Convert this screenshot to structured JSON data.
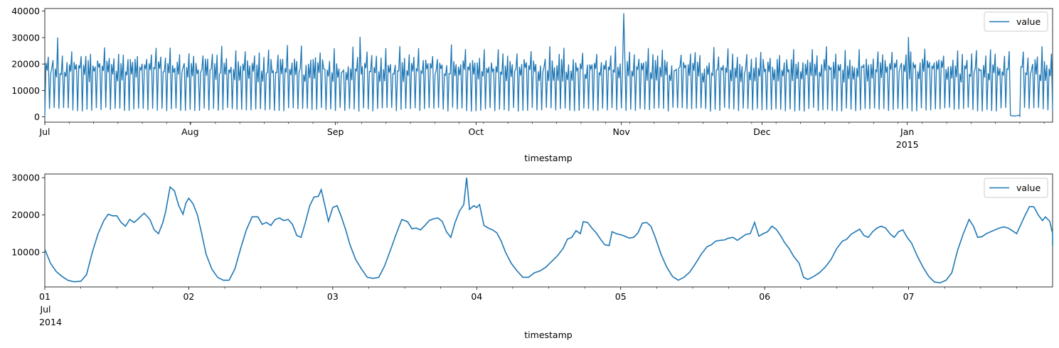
{
  "colors": {
    "series": "#1f77b4",
    "axis": "#000000",
    "legend_border": "#cccccc"
  },
  "chart_data": [
    {
      "type": "line",
      "xlabel": "timestamp",
      "x_ticks": [
        {
          "label": "Jul",
          "day": 0
        },
        {
          "label": "Aug",
          "day": 31
        },
        {
          "label": "Sep",
          "day": 62
        },
        {
          "label": "Oct",
          "day": 92
        },
        {
          "label": "Nov",
          "day": 123
        },
        {
          "label": "Dec",
          "day": 153
        },
        {
          "label": "Jan",
          "day": 184
        }
      ],
      "x_year_label": "2015",
      "x_range_days": [
        0,
        215
      ],
      "ylim": [
        -2000,
        41000
      ],
      "y_ticks": [
        0,
        10000,
        20000,
        30000,
        40000
      ],
      "legend": {
        "entries": [
          "value"
        ],
        "placement": "top-right"
      },
      "series": [
        {
          "name": "value",
          "start": "2014-07-01",
          "step_hours": 6,
          "pattern": "daily-weekly",
          "peak_max": 39197,
          "min": 0
        }
      ],
      "spikes": [
        {
          "day": 123.5,
          "value": 39197
        },
        {
          "day": 67.3,
          "value": 30300
        },
        {
          "day": 2.8,
          "value": 30000
        },
        {
          "day": 184.3,
          "value": 30200
        }
      ],
      "outage": {
        "start_day": 206,
        "end_day": 208
      }
    },
    {
      "type": "line",
      "xlabel": "timestamp",
      "x_ticks": [
        {
          "label": "01",
          "day": 0
        },
        {
          "label": "02",
          "day": 1
        },
        {
          "label": "03",
          "day": 2
        },
        {
          "label": "04",
          "day": 3
        },
        {
          "label": "05",
          "day": 4
        },
        {
          "label": "06",
          "day": 5
        },
        {
          "label": "07",
          "day": 6
        }
      ],
      "x_sub_labels": [
        "Jul",
        "2014"
      ],
      "x_range_days": [
        0,
        7
      ],
      "ylim": [
        700,
        31000
      ],
      "y_ticks": [
        10000,
        20000,
        30000
      ],
      "legend": {
        "entries": [
          "value"
        ],
        "placement": "top-right"
      },
      "series": [
        {
          "name": "value",
          "points": [
            [
              0.0,
              10800
            ],
            [
              0.04,
              7000
            ],
            [
              0.08,
              4800
            ],
            [
              0.12,
              3500
            ],
            [
              0.16,
              2500
            ],
            [
              0.2,
              2100
            ],
            [
              0.25,
              2200
            ],
            [
              0.29,
              4000
            ],
            [
              0.33,
              10000
            ],
            [
              0.37,
              15000
            ],
            [
              0.41,
              18500
            ],
            [
              0.44,
              20200
            ],
            [
              0.47,
              19800
            ],
            [
              0.5,
              19800
            ],
            [
              0.53,
              18000
            ],
            [
              0.56,
              17000
            ],
            [
              0.59,
              18800
            ],
            [
              0.62,
              18000
            ],
            [
              0.65,
              19000
            ],
            [
              0.69,
              20500
            ],
            [
              0.73,
              18800
            ],
            [
              0.76,
              16000
            ],
            [
              0.79,
              15000
            ],
            [
              0.82,
              18000
            ],
            [
              0.84,
              21000
            ],
            [
              0.87,
              27500
            ],
            [
              0.9,
              26500
            ],
            [
              0.93,
              22500
            ],
            [
              0.96,
              20200
            ],
            [
              0.98,
              23200
            ],
            [
              1.0,
              24500
            ],
            [
              1.03,
              23000
            ],
            [
              1.06,
              20000
            ],
            [
              1.09,
              15000
            ],
            [
              1.12,
              9500
            ],
            [
              1.16,
              5500
            ],
            [
              1.2,
              3300
            ],
            [
              1.24,
              2500
            ],
            [
              1.28,
              2500
            ],
            [
              1.32,
              5500
            ],
            [
              1.36,
              11000
            ],
            [
              1.4,
              16000
            ],
            [
              1.44,
              19500
            ],
            [
              1.48,
              19500
            ],
            [
              1.51,
              17500
            ],
            [
              1.54,
              18000
            ],
            [
              1.57,
              17200
            ],
            [
              1.6,
              18800
            ],
            [
              1.63,
              19200
            ],
            [
              1.66,
              18500
            ],
            [
              1.69,
              18800
            ],
            [
              1.72,
              17500
            ],
            [
              1.75,
              14500
            ],
            [
              1.78,
              14000
            ],
            [
              1.81,
              18000
            ],
            [
              1.84,
              22500
            ],
            [
              1.87,
              24800
            ],
            [
              1.9,
              25000
            ],
            [
              1.92,
              26800
            ],
            [
              1.94,
              23500
            ],
            [
              1.97,
              18300
            ],
            [
              2.0,
              22000
            ],
            [
              2.03,
              22500
            ],
            [
              2.06,
              19500
            ],
            [
              2.09,
              16000
            ],
            [
              2.12,
              12000
            ],
            [
              2.16,
              8000
            ],
            [
              2.2,
              5500
            ],
            [
              2.24,
              3300
            ],
            [
              2.28,
              3000
            ],
            [
              2.32,
              3300
            ],
            [
              2.36,
              6300
            ],
            [
              2.4,
              10500
            ],
            [
              2.44,
              14800
            ],
            [
              2.48,
              18800
            ],
            [
              2.52,
              18200
            ],
            [
              2.55,
              16300
            ],
            [
              2.58,
              16500
            ],
            [
              2.61,
              16000
            ],
            [
              2.64,
              17200
            ],
            [
              2.67,
              18500
            ],
            [
              2.7,
              19000
            ],
            [
              2.73,
              19200
            ],
            [
              2.76,
              18300
            ],
            [
              2.79,
              15500
            ],
            [
              2.82,
              14000
            ],
            [
              2.85,
              18000
            ],
            [
              2.88,
              21000
            ],
            [
              2.91,
              22800
            ],
            [
              2.93,
              30000
            ],
            [
              2.95,
              21500
            ],
            [
              2.98,
              22500
            ],
            [
              3.0,
              22000
            ],
            [
              3.02,
              22800
            ],
            [
              3.05,
              17200
            ],
            [
              3.08,
              16500
            ],
            [
              3.11,
              16000
            ],
            [
              3.14,
              15200
            ],
            [
              3.17,
              13000
            ],
            [
              3.2,
              10000
            ],
            [
              3.24,
              7000
            ],
            [
              3.28,
              5000
            ],
            [
              3.32,
              3300
            ],
            [
              3.36,
              3300
            ],
            [
              3.4,
              4500
            ],
            [
              3.44,
              5000
            ],
            [
              3.48,
              6000
            ],
            [
              3.52,
              7500
            ],
            [
              3.56,
              9000
            ],
            [
              3.6,
              11000
            ],
            [
              3.63,
              13500
            ],
            [
              3.66,
              14000
            ],
            [
              3.69,
              15800
            ],
            [
              3.72,
              15000
            ],
            [
              3.74,
              18200
            ],
            [
              3.77,
              18000
            ],
            [
              3.8,
              16500
            ],
            [
              3.83,
              15200
            ],
            [
              3.86,
              13500
            ],
            [
              3.89,
              12000
            ],
            [
              3.92,
              11800
            ],
            [
              3.94,
              15500
            ],
            [
              3.97,
              15000
            ],
            [
              4.0,
              14700
            ],
            [
              4.03,
              14300
            ],
            [
              4.06,
              13800
            ],
            [
              4.09,
              14000
            ],
            [
              4.12,
              15200
            ],
            [
              4.15,
              17800
            ],
            [
              4.18,
              18000
            ],
            [
              4.21,
              17000
            ],
            [
              4.24,
              14000
            ],
            [
              4.28,
              9500
            ],
            [
              4.32,
              6000
            ],
            [
              4.36,
              3500
            ],
            [
              4.4,
              2500
            ],
            [
              4.44,
              3300
            ],
            [
              4.48,
              4700
            ],
            [
              4.52,
              7000
            ],
            [
              4.56,
              9500
            ],
            [
              4.6,
              11500
            ],
            [
              4.63,
              12000
            ],
            [
              4.66,
              13000
            ],
            [
              4.69,
              13200
            ],
            [
              4.72,
              13300
            ],
            [
              4.75,
              13800
            ],
            [
              4.78,
              14000
            ],
            [
              4.81,
              13200
            ],
            [
              4.84,
              14000
            ],
            [
              4.87,
              14800
            ],
            [
              4.9,
              15000
            ],
            [
              4.93,
              18000
            ],
            [
              4.96,
              14300
            ],
            [
              4.99,
              15000
            ],
            [
              5.02,
              15500
            ],
            [
              5.05,
              17000
            ],
            [
              5.08,
              16200
            ],
            [
              5.11,
              14500
            ],
            [
              5.14,
              12500
            ],
            [
              5.17,
              11000
            ],
            [
              5.2,
              9000
            ],
            [
              5.24,
              7000
            ],
            [
              5.27,
              3300
            ],
            [
              5.3,
              2700
            ],
            [
              5.34,
              3500
            ],
            [
              5.38,
              4500
            ],
            [
              5.42,
              6000
            ],
            [
              5.46,
              8000
            ],
            [
              5.5,
              11000
            ],
            [
              5.54,
              13000
            ],
            [
              5.57,
              13500
            ],
            [
              5.6,
              14800
            ],
            [
              5.63,
              15500
            ],
            [
              5.66,
              16200
            ],
            [
              5.69,
              14500
            ],
            [
              5.72,
              14000
            ],
            [
              5.75,
              15500
            ],
            [
              5.78,
              16500
            ],
            [
              5.81,
              17000
            ],
            [
              5.84,
              16500
            ],
            [
              5.87,
              15000
            ],
            [
              5.9,
              14000
            ],
            [
              5.93,
              15500
            ],
            [
              5.96,
              16000
            ],
            [
              5.99,
              14000
            ],
            [
              6.02,
              12500
            ],
            [
              6.06,
              9000
            ],
            [
              6.1,
              6000
            ],
            [
              6.14,
              3500
            ],
            [
              6.18,
              2000
            ],
            [
              6.22,
              1800
            ],
            [
              6.26,
              2500
            ],
            [
              6.3,
              4500
            ],
            [
              6.34,
              10500
            ],
            [
              6.38,
              15000
            ],
            [
              6.42,
              18800
            ],
            [
              6.45,
              17000
            ],
            [
              6.48,
              14000
            ],
            [
              6.51,
              14200
            ],
            [
              6.54,
              15000
            ],
            [
              6.57,
              15500
            ],
            [
              6.6,
              16000
            ],
            [
              6.63,
              16500
            ],
            [
              6.66,
              16800
            ],
            [
              6.69,
              16500
            ],
            [
              6.72,
              15800
            ],
            [
              6.75,
              15000
            ],
            [
              6.78,
              17500
            ],
            [
              6.81,
              20000
            ],
            [
              6.84,
              22300
            ],
            [
              6.87,
              22200
            ],
            [
              6.9,
              20000
            ],
            [
              6.93,
              18500
            ],
            [
              6.95,
              19500
            ],
            [
              6.98,
              18300
            ],
            [
              7.0,
              15000
            ],
            [
              7.0,
              11800
            ]
          ]
        }
      ]
    }
  ]
}
